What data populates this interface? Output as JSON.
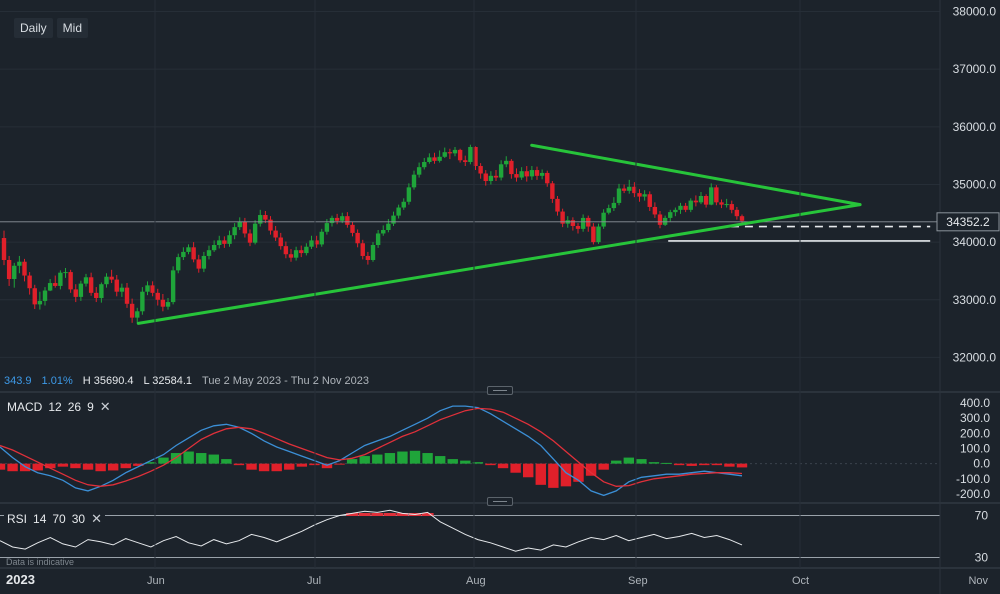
{
  "toolbar": {
    "interval": "Daily",
    "price_type": "Mid"
  },
  "ohlc": {
    "change": "343.9",
    "change_pct": "1.01%",
    "high": "H 35690.4",
    "low": "L 32584.1",
    "range": "Tue 2 May 2023 - Thu 2 Nov 2023"
  },
  "macd": {
    "label": "MACD",
    "p1": "12",
    "p2": "26",
    "p3": "9",
    "close": "✕"
  },
  "rsi": {
    "label": "RSI",
    "p1": "14",
    "p2": "70",
    "p3": "30",
    "close": "✕"
  },
  "disclaimer": "Data is indicative",
  "colors": {
    "background": "#1c232b",
    "up": "#1fa53a",
    "down": "#e0202a",
    "trendline": "#27c43a",
    "macd_line": "#3b8fd6",
    "signal_line": "#e0303a"
  },
  "chart_data": [
    {
      "type": "candlestick",
      "ylim": [
        31400,
        38200
      ],
      "y_ticks": [
        "38000.0",
        "37000.0",
        "36000.0",
        "35000.0",
        "34000.0",
        "33000.0",
        "32000.0"
      ],
      "x_labels": [
        "2023",
        "Jun",
        "Jul",
        "Aug",
        "Sep",
        "Oct",
        "Nov"
      ],
      "last_price": "34352.2",
      "candles": [
        [
          34071,
          33690,
          34200,
          33600
        ],
        [
          33690,
          33360,
          33760,
          33240
        ],
        [
          33360,
          33590,
          33640,
          33210
        ],
        [
          33590,
          33660,
          33760,
          33460
        ],
        [
          33660,
          33420,
          33710,
          33320
        ],
        [
          33420,
          33200,
          33480,
          33090
        ],
        [
          33200,
          32920,
          33260,
          32840
        ],
        [
          32920,
          32980,
          33140,
          32830
        ],
        [
          32980,
          33160,
          33220,
          32900
        ],
        [
          33160,
          33290,
          33360,
          33150
        ],
        [
          33290,
          33240,
          33420,
          33210
        ],
        [
          33240,
          33470,
          33510,
          33180
        ],
        [
          33470,
          33480,
          33550,
          33380
        ],
        [
          33480,
          33180,
          33520,
          33120
        ],
        [
          33180,
          33050,
          33270,
          32960
        ],
        [
          33050,
          33280,
          33330,
          32980
        ],
        [
          33280,
          33390,
          33450,
          33230
        ],
        [
          33390,
          33120,
          33470,
          33070
        ],
        [
          33120,
          33030,
          33220,
          32960
        ],
        [
          33030,
          33270,
          33300,
          32950
        ],
        [
          33270,
          33400,
          33460,
          33210
        ],
        [
          33400,
          33350,
          33520,
          33290
        ],
        [
          33350,
          33140,
          33430,
          33060
        ],
        [
          33140,
          33210,
          33280,
          33050
        ],
        [
          33210,
          32930,
          33290,
          32860
        ],
        [
          32930,
          32690,
          33020,
          32600
        ],
        [
          32690,
          32800,
          32860,
          32590
        ],
        [
          32800,
          33140,
          33220,
          32740
        ],
        [
          33140,
          33250,
          33320,
          33080
        ],
        [
          33250,
          33120,
          33320,
          33060
        ],
        [
          33120,
          33000,
          33190,
          32900
        ],
        [
          33000,
          32880,
          33100,
          32800
        ],
        [
          32880,
          32960,
          33030,
          32830
        ],
        [
          32960,
          33510,
          33580,
          32920
        ],
        [
          33510,
          33740,
          33800,
          33460
        ],
        [
          33740,
          33830,
          33910,
          33690
        ],
        [
          33830,
          33910,
          33960,
          33790
        ],
        [
          33910,
          33700,
          34000,
          33650
        ],
        [
          33700,
          33540,
          33780,
          33470
        ],
        [
          33540,
          33760,
          33830,
          33480
        ],
        [
          33760,
          33860,
          33940,
          33700
        ],
        [
          33860,
          33950,
          34030,
          33830
        ],
        [
          33950,
          34030,
          34110,
          33890
        ],
        [
          34030,
          33970,
          34100,
          33900
        ],
        [
          33970,
          34120,
          34200,
          33920
        ],
        [
          34120,
          34260,
          34330,
          34050
        ],
        [
          34260,
          34350,
          34430,
          34210
        ],
        [
          34350,
          34150,
          34420,
          34080
        ],
        [
          34150,
          33990,
          34220,
          33930
        ],
        [
          33990,
          34320,
          34380,
          33960
        ],
        [
          34320,
          34470,
          34560,
          34270
        ],
        [
          34470,
          34390,
          34540,
          34330
        ],
        [
          34390,
          34200,
          34450,
          34130
        ],
        [
          34200,
          34080,
          34280,
          34020
        ],
        [
          34080,
          33930,
          34160,
          33870
        ],
        [
          33930,
          33790,
          34010,
          33720
        ],
        [
          33790,
          33730,
          33880,
          33660
        ],
        [
          33730,
          33860,
          33920,
          33680
        ],
        [
          33860,
          33810,
          33940,
          33740
        ],
        [
          33810,
          33920,
          33980,
          33770
        ],
        [
          33920,
          34030,
          34110,
          33880
        ],
        [
          34030,
          33960,
          34110,
          33900
        ],
        [
          33960,
          34180,
          34230,
          33920
        ],
        [
          34180,
          34330,
          34400,
          34130
        ],
        [
          34330,
          34420,
          34460,
          34270
        ],
        [
          34420,
          34370,
          34490,
          34310
        ],
        [
          34370,
          34450,
          34510,
          34330
        ],
        [
          34450,
          34300,
          34520,
          34250
        ],
        [
          34300,
          34160,
          34350,
          34100
        ],
        [
          34160,
          33980,
          34220,
          33910
        ],
        [
          33980,
          33760,
          34040,
          33700
        ],
        [
          33760,
          33690,
          33830,
          33610
        ],
        [
          33690,
          33950,
          34000,
          33660
        ],
        [
          33950,
          34150,
          34210,
          33900
        ],
        [
          34150,
          34210,
          34290,
          34110
        ],
        [
          34210,
          34320,
          34400,
          34170
        ],
        [
          34320,
          34460,
          34530,
          34280
        ],
        [
          34460,
          34600,
          34650,
          34410
        ],
        [
          34600,
          34700,
          34760,
          34560
        ],
        [
          34700,
          34950,
          35020,
          34650
        ],
        [
          34950,
          35170,
          35240,
          34910
        ],
        [
          35170,
          35300,
          35380,
          35120
        ],
        [
          35300,
          35390,
          35460,
          35260
        ],
        [
          35390,
          35470,
          35540,
          35360
        ],
        [
          35470,
          35410,
          35550,
          35360
        ],
        [
          35410,
          35480,
          35590,
          35380
        ],
        [
          35480,
          35560,
          35640,
          35460
        ],
        [
          35560,
          35540,
          35620,
          35440
        ],
        [
          35540,
          35600,
          35650,
          35490
        ],
        [
          35600,
          35420,
          35620,
          35380
        ],
        [
          35420,
          35390,
          35500,
          35320
        ],
        [
          35390,
          35650,
          35690,
          35350
        ],
        [
          35650,
          35320,
          35660,
          35250
        ],
        [
          35320,
          35190,
          35370,
          35100
        ],
        [
          35190,
          35060,
          35250,
          34980
        ],
        [
          35060,
          35150,
          35230,
          35000
        ],
        [
          35150,
          35120,
          35250,
          35060
        ],
        [
          35120,
          35350,
          35420,
          35070
        ],
        [
          35350,
          35410,
          35490,
          35300
        ],
        [
          35410,
          35180,
          35440,
          35100
        ],
        [
          35180,
          35120,
          35280,
          35050
        ],
        [
          35120,
          35230,
          35300,
          35080
        ],
        [
          35230,
          35140,
          35320,
          35050
        ],
        [
          35140,
          35250,
          35320,
          35080
        ],
        [
          35250,
          35150,
          35310,
          35080
        ],
        [
          35150,
          35200,
          35260,
          35090
        ],
        [
          35200,
          35020,
          35240,
          34960
        ],
        [
          35020,
          34750,
          35060,
          34680
        ],
        [
          34750,
          34530,
          34800,
          34460
        ],
        [
          34530,
          34320,
          34580,
          34260
        ],
        [
          34320,
          34380,
          34450,
          34250
        ],
        [
          34380,
          34280,
          34430,
          34200
        ],
        [
          34280,
          34230,
          34330,
          34150
        ],
        [
          34230,
          34420,
          34480,
          34180
        ],
        [
          34420,
          34270,
          34460,
          34180
        ],
        [
          34270,
          34000,
          34330,
          33960
        ],
        [
          34000,
          34270,
          34320,
          33970
        ],
        [
          34270,
          34510,
          34570,
          34230
        ],
        [
          34510,
          34590,
          34650,
          34480
        ],
        [
          34590,
          34680,
          34780,
          34540
        ],
        [
          34680,
          34930,
          35010,
          34640
        ],
        [
          34930,
          34890,
          35000,
          34850
        ],
        [
          34890,
          34960,
          35080,
          34840
        ],
        [
          34960,
          34850,
          35040,
          34780
        ],
        [
          34850,
          34790,
          34920,
          34700
        ],
        [
          34790,
          34830,
          34900,
          34720
        ],
        [
          34830,
          34610,
          34880,
          34540
        ],
        [
          34610,
          34480,
          34690,
          34420
        ],
        [
          34480,
          34300,
          34540,
          34240
        ],
        [
          34300,
          34420,
          34460,
          34280
        ],
        [
          34420,
          34520,
          34560,
          34360
        ],
        [
          34520,
          34560,
          34600,
          34450
        ],
        [
          34560,
          34630,
          34680,
          34490
        ],
        [
          34630,
          34560,
          34680,
          34520
        ],
        [
          34560,
          34720,
          34760,
          34520
        ],
        [
          34720,
          34690,
          34810,
          34620
        ],
        [
          34690,
          34800,
          34870,
          34660
        ],
        [
          34800,
          34650,
          34830,
          34600
        ],
        [
          34650,
          34950,
          35020,
          34640
        ],
        [
          34950,
          34690,
          34990,
          34640
        ],
        [
          34690,
          34650,
          34740,
          34590
        ],
        [
          34650,
          34660,
          34750,
          34600
        ],
        [
          34660,
          34560,
          34720,
          34500
        ],
        [
          34560,
          34450,
          34610,
          34390
        ],
        [
          34450,
          34370,
          34480,
          34320
        ]
      ],
      "trendlines": [
        {
          "points": [
            [
              0.182,
              32590
            ],
            [
              1.16,
              34650
            ]
          ],
          "color": "trendline"
        },
        {
          "points": [
            [
              0.715,
              35680
            ],
            [
              1.16,
              34650
            ]
          ],
          "color": "trendline"
        }
      ],
      "levels": [
        {
          "value": 34270,
          "style": "dashed",
          "from": 0.985,
          "to": 1.255
        },
        {
          "value": 34020,
          "style": "solid",
          "from": 0.9,
          "to": 1.255
        }
      ]
    },
    {
      "type": "line",
      "title": "MACD 12 26 9",
      "ylim": [
        -260,
        460
      ],
      "y_ticks": [
        "400.0",
        "300.0",
        "200.0",
        "100.0",
        "0.0",
        "-100.0",
        "-200.0"
      ],
      "series": [
        {
          "name": "MACD",
          "values": [
            110,
            40,
            -20,
            -60,
            -80,
            -110,
            -160,
            -180,
            -150,
            -110,
            -60,
            -20,
            20,
            60,
            120,
            170,
            220,
            250,
            260,
            240,
            200,
            150,
            110,
            80,
            50,
            20,
            -10,
            20,
            70,
            120,
            150,
            180,
            220,
            260,
            300,
            350,
            380,
            380,
            370,
            330,
            280,
            230,
            180,
            120,
            30,
            -60,
            -110,
            -180,
            -210,
            -180,
            -120,
            -90,
            -80,
            -70,
            -70,
            -60,
            -50,
            -60,
            -70,
            -80
          ]
        },
        {
          "name": "Signal",
          "values": [
            120,
            90,
            50,
            10,
            -30,
            -70,
            -110,
            -140,
            -150,
            -140,
            -115,
            -85,
            -50,
            -10,
            40,
            100,
            160,
            200,
            230,
            240,
            230,
            200,
            165,
            130,
            100,
            70,
            40,
            25,
            35,
            60,
            100,
            140,
            180,
            210,
            250,
            290,
            320,
            350,
            365,
            360,
            340,
            300,
            260,
            210,
            150,
            80,
            10,
            -60,
            -120,
            -150,
            -145,
            -120,
            -100,
            -90,
            -80,
            -70,
            -65,
            -60,
            -60,
            -65
          ]
        }
      ],
      "histogram_values": [
        -40,
        -50,
        -50,
        -45,
        -30,
        -20,
        -30,
        -40,
        -50,
        -45,
        -30,
        -15,
        10,
        40,
        70,
        80,
        70,
        60,
        30,
        -10,
        -40,
        -50,
        -50,
        -40,
        -20,
        -10,
        -30,
        -5,
        30,
        50,
        60,
        70,
        80,
        85,
        70,
        50,
        30,
        20,
        10,
        -10,
        -30,
        -60,
        -90,
        -140,
        -160,
        -150,
        -120,
        -80,
        -40,
        20,
        40,
        30,
        10,
        5,
        -10,
        -15,
        -10,
        -10,
        -20,
        -25
      ],
      "levels": [
        0
      ]
    },
    {
      "type": "line",
      "title": "RSI 14 70 30",
      "ylim": [
        20,
        80
      ],
      "y_ticks": [
        "70",
        "30"
      ],
      "series": [
        {
          "name": "RSI",
          "values": [
            46,
            40,
            38,
            44,
            49,
            43,
            40,
            47,
            45,
            42,
            48,
            44,
            40,
            46,
            50,
            44,
            41,
            47,
            43,
            46,
            52,
            49,
            45,
            50,
            55,
            61,
            66,
            70,
            72,
            74,
            73,
            75,
            72,
            71,
            73,
            64,
            58,
            52,
            47,
            44,
            40,
            36,
            39,
            37,
            42,
            40,
            45,
            49,
            47,
            51,
            46,
            49,
            52,
            48,
            50,
            53,
            49,
            51,
            47,
            42
          ]
        }
      ],
      "levels": [
        70,
        30
      ]
    }
  ]
}
